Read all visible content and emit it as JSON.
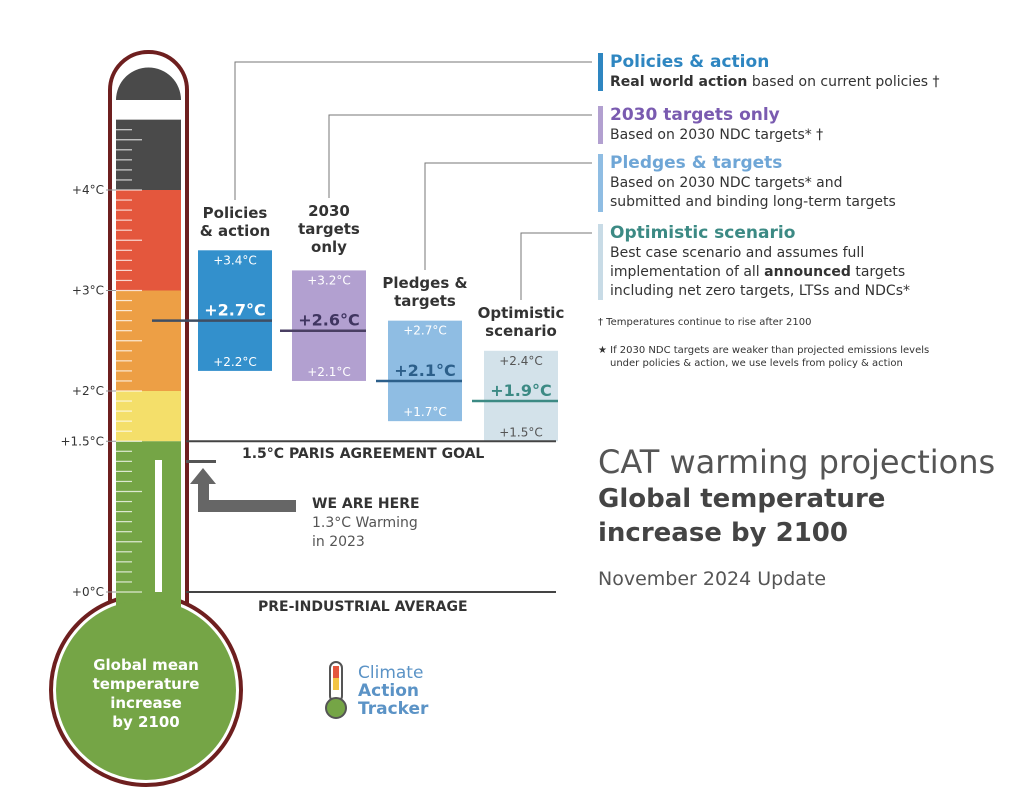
{
  "chart_data": {
    "type": "bar",
    "title": "CAT warming projections",
    "subtitle": "Global temperature increase by 2100",
    "update": "November 2024 Update",
    "y_ticks": [
      "+0°C",
      "+1.5°C",
      "+2°C",
      "+3°C",
      "+4°C"
    ],
    "y_tick_values": [
      0,
      1.5,
      2,
      3,
      4
    ],
    "ylim": [
      0,
      4.7
    ],
    "scenarios": [
      {
        "key": "policies",
        "label_lines": [
          "Policies",
          "& action"
        ],
        "high": 3.4,
        "central": 2.7,
        "low": 2.2,
        "high_label": "+3.4°C",
        "central_label": "+2.7°C",
        "low_label": "+2.2°C",
        "color": "#3390cc",
        "central_color": "#3f4e63"
      },
      {
        "key": "targets2030",
        "label_lines": [
          "2030",
          "targets",
          "only"
        ],
        "high": 3.2,
        "central": 2.6,
        "low": 2.1,
        "high_label": "+3.2°C",
        "central_label": "+2.6°C",
        "low_label": "+2.1°C",
        "color": "#b2a0d0",
        "central_color": "#4a3f63"
      },
      {
        "key": "pledges",
        "label_lines": [
          "Pledges &",
          "targets"
        ],
        "high": 2.7,
        "central": 2.1,
        "low": 1.7,
        "high_label": "+2.7°C",
        "central_label": "+2.1°C",
        "low_label": "+1.7°C",
        "color": "#8fbde3",
        "central_color": "#2c5f8a"
      },
      {
        "key": "optimistic",
        "label_lines": [
          "Optimistic",
          "scenario"
        ],
        "high": 2.4,
        "central": 1.9,
        "low": 1.5,
        "high_label": "+2.4°C",
        "central_label": "+1.9°C",
        "low_label": "+1.5°C",
        "color": "#d3e2ea",
        "central_color": "#3c8a84"
      }
    ],
    "paris_goal": {
      "value": 1.5,
      "label": "1.5°C PARIS AGREEMENT GOAL"
    },
    "pre_industrial": {
      "value": 0,
      "label": "PRE-INDUSTRIAL AVERAGE"
    },
    "current": {
      "value": 1.3,
      "title": "WE ARE HERE",
      "line1": "1.3°C Warming",
      "line2": "in 2023"
    },
    "thermometer_label": [
      "Global mean",
      "temperature",
      "increase",
      "by 2100"
    ]
  },
  "legend": [
    {
      "title": "Policies & action",
      "title_color": "#2e86c1",
      "bar_color": "#2e86c1",
      "desc_bold": "Real world action",
      "desc_rest": " based on current policies †"
    },
    {
      "title": "2030 targets only",
      "title_color": "#7a5bb0",
      "bar_color": "#b2a0d0",
      "desc": "Based on 2030 NDC targets* †"
    },
    {
      "title": "Pledges & targets",
      "title_color": "#6fa6d6",
      "bar_color": "#8fbde3",
      "desc1": "Based on 2030 NDC targets* and",
      "desc2": "submitted and binding long-term targets"
    },
    {
      "title": "Optimistic scenario",
      "title_color": "#3c8a84",
      "bar_color": "#c8dbe6",
      "desc1": "Best case scenario and assumes full",
      "desc2_pre": "implementation of all ",
      "desc2_bold": "announced",
      "desc2_post": " targets",
      "desc3": "including net zero targets, LTSs and NDCs*"
    }
  ],
  "notes": {
    "dagger": "† Temperatures continue to rise after 2100",
    "star1": "★ If 2030 NDC targets are weaker than projected emissions levels",
    "star2": "under policies & action, we use levels from policy & action"
  },
  "logo": {
    "line1": "Climate",
    "line2": "Action",
    "line3": "Tracker"
  }
}
